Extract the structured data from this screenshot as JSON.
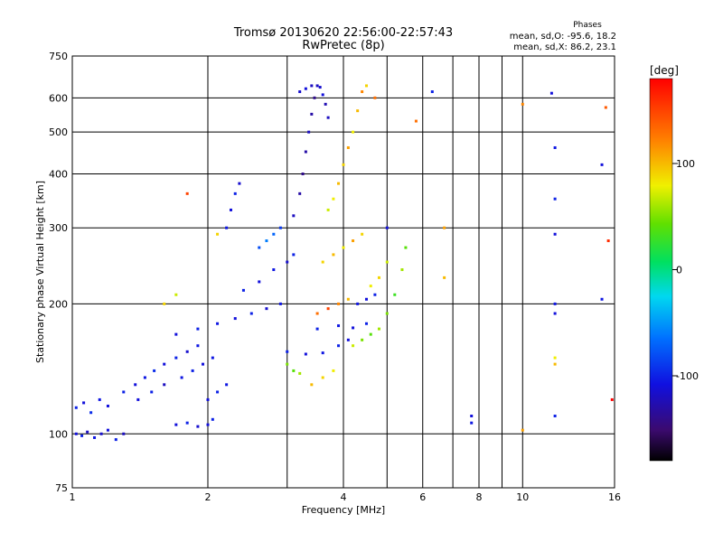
{
  "chart_data": {
    "type": "scatter",
    "title": "Tromsø 20130620 22:56:00-22:57:43",
    "subtitle": "RwPretec (8p)",
    "xlabel": "Frequency [MHz]",
    "ylabel": "Stationary phase Virtual Height [km]",
    "x_scale": "log",
    "y_scale": "log",
    "xlim": [
      1,
      16
    ],
    "ylim": [
      75,
      750
    ],
    "x_ticks": [
      1,
      2,
      4,
      6,
      8,
      10,
      16
    ],
    "x_minor_grid": [
      3,
      5,
      7,
      9
    ],
    "y_ticks": [
      75,
      100,
      200,
      300,
      400,
      500,
      600,
      750
    ],
    "y_tick_labels": [
      "75",
      "100",
      "200",
      "300",
      "400",
      "500",
      "600",
      "750"
    ],
    "grid": true,
    "legend": {
      "title": "Phases",
      "lines": [
        "mean, sd,O: -95.6, 18.2",
        "mean, sd,X: 86.2, 23.1"
      ],
      "position": "top-right"
    },
    "colorbar": {
      "label": "[deg]",
      "range": [
        -180,
        180
      ],
      "ticks": [
        100,
        0,
        -100
      ],
      "tick_labels": [
        "100",
        "0",
        "-100"
      ],
      "colormap": "rainbow"
    },
    "series": [
      {
        "trace": "O",
        "points": [
          [
            1.02,
            100,
            -110
          ],
          [
            1.05,
            99,
            -100
          ],
          [
            1.08,
            101,
            -120
          ],
          [
            1.12,
            98,
            -105
          ],
          [
            1.16,
            100,
            -115
          ],
          [
            1.2,
            102,
            -110
          ],
          [
            1.25,
            97,
            -100
          ],
          [
            1.3,
            100,
            -120
          ],
          [
            1.02,
            115,
            -100
          ],
          [
            1.06,
            118,
            -110
          ],
          [
            1.1,
            112,
            -95
          ],
          [
            1.15,
            120,
            -105
          ],
          [
            1.2,
            116,
            -110
          ],
          [
            1.3,
            125,
            -100
          ],
          [
            1.38,
            130,
            -110
          ],
          [
            1.45,
            135,
            -105
          ],
          [
            1.52,
            140,
            -95
          ],
          [
            1.6,
            145,
            -110
          ],
          [
            1.7,
            150,
            -100
          ],
          [
            1.8,
            155,
            -115
          ],
          [
            1.9,
            160,
            -105
          ],
          [
            1.4,
            120,
            -110
          ],
          [
            1.5,
            125,
            -100
          ],
          [
            1.6,
            130,
            -120
          ],
          [
            1.75,
            135,
            -105
          ],
          [
            1.85,
            140,
            -100
          ],
          [
            1.95,
            145,
            -110
          ],
          [
            2.05,
            150,
            -105
          ],
          [
            1.7,
            105,
            -110
          ],
          [
            1.8,
            106,
            -100
          ],
          [
            1.9,
            104,
            -115
          ],
          [
            2.0,
            105,
            -110
          ],
          [
            2.05,
            108,
            -100
          ],
          [
            1.7,
            170,
            -110
          ],
          [
            1.9,
            175,
            -100
          ],
          [
            2.1,
            180,
            -105
          ],
          [
            2.3,
            185,
            -110
          ],
          [
            2.5,
            190,
            -100
          ],
          [
            2.7,
            195,
            -115
          ],
          [
            2.9,
            200,
            -105
          ],
          [
            2.0,
            120,
            -110
          ],
          [
            2.1,
            125,
            -100
          ],
          [
            2.2,
            130,
            -105
          ],
          [
            2.4,
            215,
            -100
          ],
          [
            2.6,
            225,
            -110
          ],
          [
            2.8,
            240,
            -105
          ],
          [
            3.0,
            250,
            -115
          ],
          [
            3.1,
            260,
            -100
          ],
          [
            2.6,
            270,
            -80
          ],
          [
            2.7,
            280,
            -60
          ],
          [
            2.8,
            290,
            -70
          ],
          [
            2.9,
            300,
            -90
          ],
          [
            3.1,
            320,
            -120
          ],
          [
            3.2,
            360,
            -130
          ],
          [
            3.25,
            400,
            -140
          ],
          [
            3.3,
            450,
            -130
          ],
          [
            3.35,
            500,
            -120
          ],
          [
            3.4,
            550,
            -130
          ],
          [
            3.45,
            600,
            -140
          ],
          [
            3.5,
            640,
            -120
          ],
          [
            3.2,
            620,
            -115
          ],
          [
            3.3,
            630,
            -110
          ],
          [
            3.4,
            640,
            -120
          ],
          [
            3.55,
            635,
            -115
          ],
          [
            3.6,
            610,
            -110
          ],
          [
            3.65,
            580,
            -125
          ],
          [
            3.7,
            540,
            -120
          ],
          [
            3.0,
            155,
            -100
          ],
          [
            3.3,
            153,
            -110
          ],
          [
            3.6,
            154,
            -105
          ],
          [
            3.9,
            160,
            -100
          ],
          [
            4.1,
            165,
            -110
          ],
          [
            3.5,
            175,
            -100
          ],
          [
            3.9,
            178,
            -105
          ],
          [
            4.2,
            176,
            -110
          ],
          [
            4.5,
            180,
            -100
          ],
          [
            2.2,
            300,
            -105
          ],
          [
            2.25,
            330,
            -110
          ],
          [
            2.3,
            360,
            -100
          ],
          [
            2.35,
            380,
            -115
          ],
          [
            4.3,
            200,
            -105
          ],
          [
            4.5,
            205,
            -110
          ],
          [
            4.7,
            210,
            -100
          ],
          [
            5.0,
            300,
            -110
          ],
          [
            6.3,
            620,
            -100
          ],
          [
            7.7,
            110,
            -110
          ],
          [
            7.7,
            106,
            -105
          ],
          [
            11.6,
            615,
            -110
          ],
          [
            11.8,
            460,
            -105
          ],
          [
            11.8,
            350,
            -100
          ],
          [
            11.8,
            290,
            -110
          ],
          [
            11.8,
            200,
            -105
          ],
          [
            11.8,
            190,
            -110
          ],
          [
            11.8,
            110,
            -100
          ],
          [
            15.0,
            420,
            -110
          ],
          [
            15.0,
            205,
            -105
          ]
        ]
      },
      {
        "trace": "X",
        "points": [
          [
            3.7,
            330,
            70
          ],
          [
            3.8,
            350,
            80
          ],
          [
            3.9,
            380,
            100
          ],
          [
            4.0,
            420,
            90
          ],
          [
            4.1,
            460,
            110
          ],
          [
            4.2,
            500,
            80
          ],
          [
            4.3,
            560,
            100
          ],
          [
            4.4,
            620,
            120
          ],
          [
            4.5,
            640,
            90
          ],
          [
            4.7,
            600,
            130
          ],
          [
            3.6,
            250,
            90
          ],
          [
            3.8,
            260,
            100
          ],
          [
            4.0,
            270,
            80
          ],
          [
            4.2,
            280,
            110
          ],
          [
            4.4,
            290,
            90
          ],
          [
            3.5,
            190,
            130
          ],
          [
            3.7,
            195,
            150
          ],
          [
            3.9,
            200,
            120
          ],
          [
            4.1,
            205,
            100
          ],
          [
            3.4,
            130,
            100
          ],
          [
            3.6,
            135,
            90
          ],
          [
            3.8,
            140,
            80
          ],
          [
            3.0,
            145,
            50
          ],
          [
            3.1,
            140,
            40
          ],
          [
            3.2,
            138,
            60
          ],
          [
            4.2,
            160,
            70
          ],
          [
            4.4,
            165,
            50
          ],
          [
            4.6,
            170,
            40
          ],
          [
            4.8,
            175,
            60
          ],
          [
            5.0,
            190,
            50
          ],
          [
            5.2,
            210,
            30
          ],
          [
            5.4,
            240,
            60
          ],
          [
            5.5,
            270,
            40
          ],
          [
            4.6,
            220,
            80
          ],
          [
            4.8,
            230,
            90
          ],
          [
            5.0,
            250,
            70
          ],
          [
            1.6,
            200,
            90
          ],
          [
            1.7,
            210,
            70
          ],
          [
            1.8,
            360,
            150
          ],
          [
            2.1,
            290,
            90
          ],
          [
            5.8,
            530,
            130
          ],
          [
            6.7,
            300,
            110
          ],
          [
            6.7,
            230,
            100
          ],
          [
            10.0,
            580,
            120
          ],
          [
            10.0,
            102,
            110
          ],
          [
            11.8,
            150,
            80
          ],
          [
            11.8,
            145,
            100
          ],
          [
            15.3,
            570,
            140
          ],
          [
            15.5,
            280,
            160
          ],
          [
            15.8,
            120,
            180
          ]
        ]
      }
    ]
  }
}
